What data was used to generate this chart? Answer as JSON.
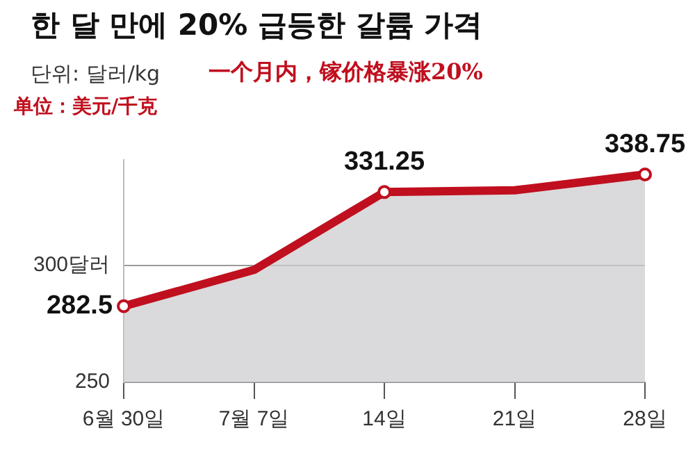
{
  "chart_data": {
    "type": "area",
    "title": "한 달 만에 20% 급등한 갈륨 가격",
    "subtitle": "단위: 달러/kg",
    "annotations": [
      "一个月内，镓价格暴涨20%",
      "单位：美元/千克"
    ],
    "categories": [
      "6월 30일",
      "7월 7일",
      "14일",
      "21일",
      "28일"
    ],
    "series": [
      {
        "color": "#c00f1e",
        "values": [
          282.5,
          298,
          331.25,
          332,
          338.75
        ],
        "value_labels": [
          "282.5",
          null,
          "331.25",
          null,
          "338.75"
        ]
      }
    ],
    "yticks": [
      250,
      {
        "value": 300,
        "label": "300달러"
      }
    ],
    "ylim": [
      250,
      345
    ],
    "grid": "y",
    "marker": "circle",
    "line_style": "solid",
    "legend": false
  }
}
